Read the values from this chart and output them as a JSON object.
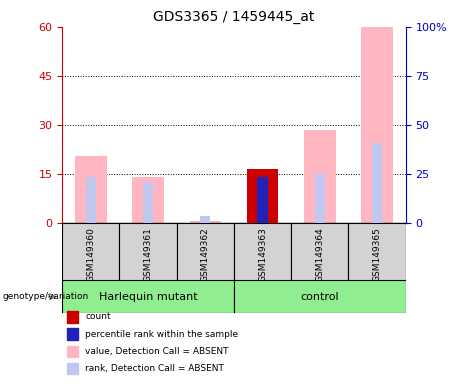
{
  "title": "GDS3365 / 1459445_at",
  "samples": [
    "GSM149360",
    "GSM149361",
    "GSM149362",
    "GSM149363",
    "GSM149364",
    "GSM149365"
  ],
  "group_labels": [
    "Harlequin mutant",
    "control"
  ],
  "value_absent": [
    20.5,
    14.0,
    0.5,
    0.0,
    28.5,
    60.0
  ],
  "rank_absent": [
    14.0,
    12.5,
    2.0,
    0.0,
    15.0,
    24.5
  ],
  "count_present": [
    0.0,
    0.0,
    0.0,
    16.5,
    0.0,
    0.0
  ],
  "prank_present": [
    0.0,
    0.0,
    0.0,
    14.0,
    0.0,
    0.0
  ],
  "left_ylim": [
    0,
    60
  ],
  "right_ylim": [
    0,
    100
  ],
  "left_yticks": [
    0,
    15,
    30,
    45,
    60
  ],
  "right_yticks": [
    0,
    25,
    50,
    75,
    100
  ],
  "right_yticklabels": [
    "0",
    "25",
    "50",
    "75",
    "100%"
  ],
  "color_count": "#cc0000",
  "color_prank": "#2222bb",
  "color_value_absent": "#ffb6c1",
  "color_rank_absent": "#c0c8f0",
  "color_axis_left": "#cc0000",
  "color_axis_right": "#0000cc",
  "group_bg_color": "#90ee90",
  "sample_bg_color": "#d3d3d3",
  "wide_bar_width": 0.55,
  "narrow_bar_width": 0.18
}
